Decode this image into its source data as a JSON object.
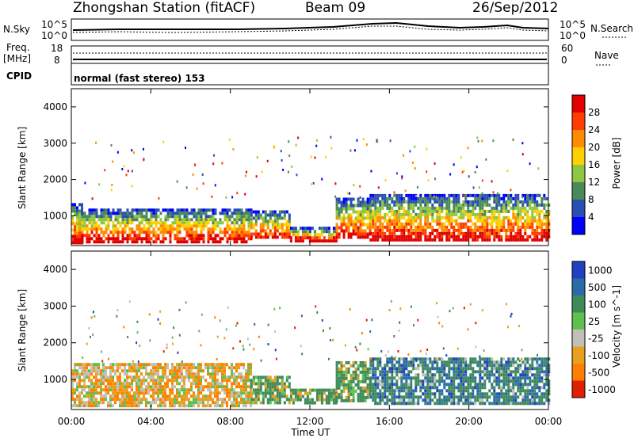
{
  "header": {
    "station": "Zhongshan Station (fitACF)",
    "beam": "Beam 09",
    "date": "26/Sep/2012"
  },
  "top_panels": {
    "noise_left_label": "N.Sky",
    "noise_right_label": "N.Search",
    "noise_left_ticks": [
      "10^5",
      "10^0"
    ],
    "noise_right_ticks": [
      "10^5",
      "10^0"
    ],
    "freq_label_line1": "Freq.",
    "freq_label_line2": "[MHz]",
    "freq_ticks": [
      "18",
      "8"
    ],
    "nave_label": "Nave",
    "nave_ticks": [
      "60",
      "0"
    ],
    "cpid_label": "CPID",
    "cpid_text": "normal (fast stereo) 153"
  },
  "chart_data": [
    {
      "type": "heatmap",
      "title": "",
      "xlabel": "Time UT",
      "ylabel": "Slant Range [km]",
      "x_ticks": [
        "00:00",
        "04:00",
        "08:00",
        "12:00",
        "16:00",
        "20:00",
        "00:00"
      ],
      "x_range_hours": [
        0,
        24
      ],
      "y_ticks": [
        "1000",
        "2000",
        "3000",
        "4000"
      ],
      "y_range": [
        180,
        4500
      ],
      "colorbar_label": "Power [dB]",
      "colorbar_ticks": [
        "4",
        "8",
        "12",
        "16",
        "20",
        "24",
        "28"
      ],
      "colors": [
        "#0000ff",
        "#2a4db0",
        "#4a8a5a",
        "#8fc640",
        "#ffd000",
        "#ff8c00",
        "#ff3c00",
        "#e00000"
      ],
      "regions": [
        {
          "t": [
            0.0,
            0.5
          ],
          "r": [
            250,
            1350
          ]
        },
        {
          "t": [
            0.5,
            9.0
          ],
          "r": [
            320,
            1200
          ]
        },
        {
          "t": [
            9.0,
            11.0
          ],
          "r": [
            400,
            1150
          ]
        },
        {
          "t": [
            11.0,
            13.3
          ],
          "r": [
            350,
            700
          ]
        },
        {
          "t": [
            13.3,
            15.0
          ],
          "r": [
            400,
            1500
          ]
        },
        {
          "t": [
            15.0,
            24.0
          ],
          "r": [
            350,
            1600
          ]
        }
      ]
    },
    {
      "type": "heatmap",
      "title": "",
      "xlabel": "Time UT",
      "ylabel": "Slant Range [km]",
      "x_ticks": [
        "00:00",
        "04:00",
        "08:00",
        "12:00",
        "16:00",
        "20:00",
        "00:00"
      ],
      "x_range_hours": [
        0,
        24
      ],
      "y_ticks": [
        "1000",
        "2000",
        "3000",
        "4000"
      ],
      "y_range": [
        180,
        4500
      ],
      "colorbar_label": "Velocity [m s^-1]",
      "colorbar_ticks": [
        "1000",
        "500",
        "100",
        "25",
        "-25",
        "-100",
        "-500",
        "-1000"
      ],
      "colors": [
        "#2040c0",
        "#2a6aa8",
        "#3f8a5a",
        "#5fc050",
        "#c0c0b8",
        "#e8a020",
        "#ff8000",
        "#e02000"
      ],
      "regions": [
        {
          "t": [
            0.0,
            9.0
          ],
          "r": [
            320,
            1450
          ]
        },
        {
          "t": [
            9.0,
            11.0
          ],
          "r": [
            400,
            1100
          ]
        },
        {
          "t": [
            11.0,
            13.3
          ],
          "r": [
            350,
            750
          ]
        },
        {
          "t": [
            13.3,
            15.0
          ],
          "r": [
            400,
            1500
          ]
        },
        {
          "t": [
            15.0,
            24.0
          ],
          "r": [
            350,
            1600
          ]
        }
      ]
    }
  ]
}
